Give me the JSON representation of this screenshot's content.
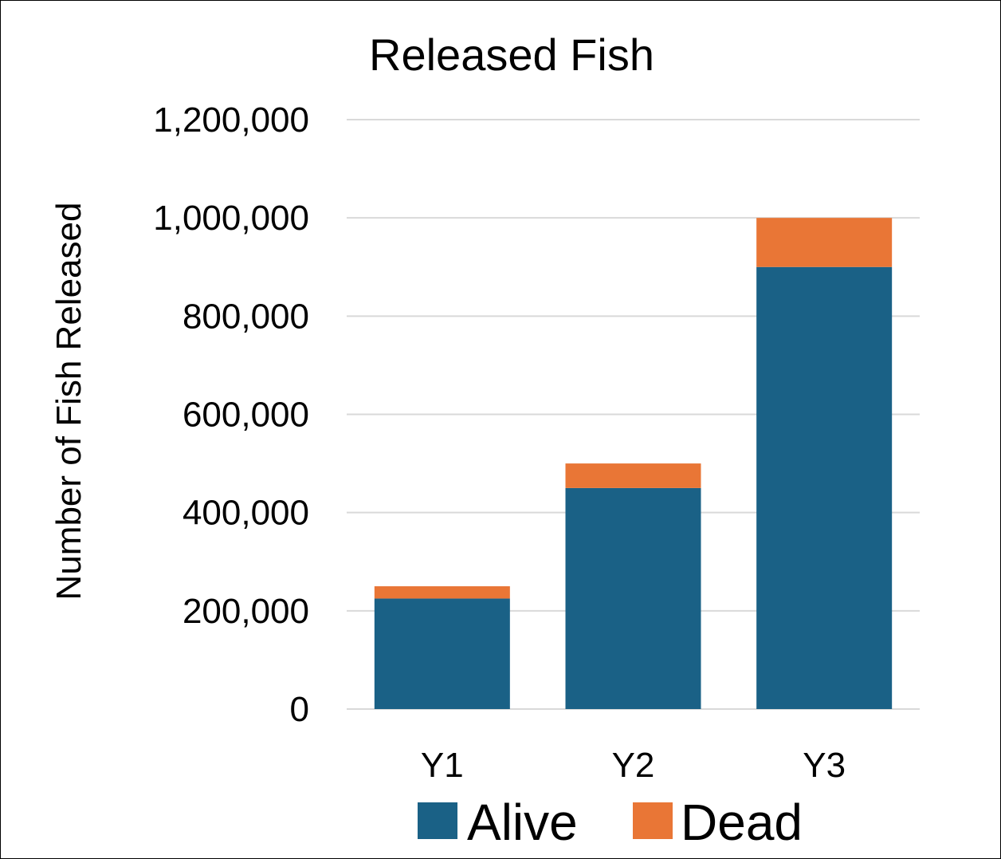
{
  "chart_data": {
    "type": "bar",
    "stacked": true,
    "title": "Released Fish",
    "xlabel": "",
    "ylabel": "Number of Fish Released",
    "categories": [
      "Y1",
      "Y2",
      "Y3"
    ],
    "series": [
      {
        "name": "Alive",
        "color": "#1a6186",
        "values": [
          225000,
          450000,
          900000
        ]
      },
      {
        "name": "Dead",
        "color": "#e97636",
        "values": [
          25000,
          50000,
          100000
        ]
      }
    ],
    "ylim": [
      0,
      1200000
    ],
    "yticks": [
      0,
      200000,
      400000,
      600000,
      800000,
      1000000,
      1200000
    ],
    "ytick_labels": [
      "0",
      "200,000",
      "400,000",
      "600,000",
      "800,000",
      "1,000,000",
      "1,200,000"
    ],
    "grid": true,
    "legend_position": "bottom"
  }
}
